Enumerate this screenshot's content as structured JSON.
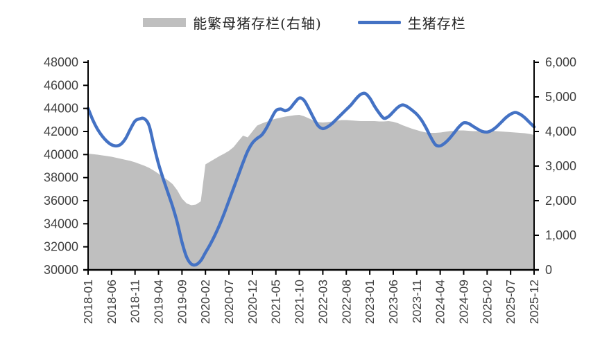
{
  "chart_data": {
    "type": "combo",
    "title": "",
    "x_months_count": 96,
    "x_tick_labels": [
      "2018-01",
      "2018-06",
      "2018-11",
      "2019-04",
      "2019-09",
      "2020-02",
      "2020-07",
      "2020-12",
      "2021-05",
      "2021-10",
      "2022-03",
      "2022-08",
      "2023-01",
      "2023-06",
      "2023-11",
      "2024-04",
      "2024-09",
      "2025-02",
      "2025-07",
      "2025-12"
    ],
    "left_axis": {
      "min": 30000,
      "max": 48000,
      "step": 2000,
      "labels": [
        "48000",
        "46000",
        "44000",
        "42000",
        "40000",
        "38000",
        "36000",
        "34000",
        "32000",
        "30000"
      ]
    },
    "right_axis": {
      "min": 0,
      "max": 6000,
      "step": 1000,
      "labels": [
        "6,000",
        "5,000",
        "4,000",
        "3,000",
        "2,000",
        "1,000",
        "0"
      ]
    },
    "grid": false,
    "legend_position": "top",
    "colors": {
      "area": "#BFBFBF",
      "line": "#4472C4",
      "axis": "#000000",
      "tick_text": "#404040"
    },
    "series": [
      {
        "name": "能繁母猪存栏(右轴)",
        "type": "area",
        "axis": "right",
        "color": "#BFBFBF",
        "values": [
          3360,
          3345,
          3330,
          3310,
          3290,
          3270,
          3240,
          3210,
          3180,
          3150,
          3110,
          3060,
          3010,
          2950,
          2870,
          2780,
          2680,
          2590,
          2480,
          2300,
          2060,
          1920,
          1870,
          1890,
          1980,
          3050,
          3130,
          3210,
          3290,
          3360,
          3440,
          3550,
          3720,
          3880,
          3830,
          4000,
          4170,
          4230,
          4280,
          4330,
          4370,
          4400,
          4430,
          4450,
          4470,
          4480,
          4440,
          4380,
          4320,
          4270,
          4260,
          4270,
          4290,
          4310,
          4330,
          4330,
          4320,
          4310,
          4300,
          4300,
          4300,
          4300,
          4290,
          4290,
          4300,
          4280,
          4240,
          4180,
          4130,
          4080,
          4040,
          4000,
          3970,
          3960,
          3960,
          3970,
          3990,
          4010,
          4020,
          4030,
          4030,
          4020,
          4010,
          4010,
          4010,
          4020,
          4020,
          4010,
          4000,
          3990,
          3980,
          3970,
          3960,
          3950,
          3930,
          3900
        ]
      },
      {
        "name": "生猪存栏",
        "type": "line",
        "axis": "left",
        "color": "#4472C4",
        "values": [
          44000,
          43000,
          42200,
          41600,
          41150,
          40850,
          40750,
          40900,
          41400,
          42200,
          42900,
          43100,
          43100,
          42500,
          40800,
          39200,
          37900,
          36700,
          35500,
          34100,
          32400,
          31100,
          30500,
          30450,
          30800,
          31500,
          32200,
          33000,
          33900,
          34900,
          36000,
          37100,
          38200,
          39300,
          40300,
          41000,
          41400,
          41700,
          42300,
          43100,
          43800,
          43950,
          43800,
          44000,
          44500,
          44900,
          44700,
          44000,
          43200,
          42500,
          42250,
          42400,
          42700,
          43100,
          43500,
          43900,
          44300,
          44800,
          45200,
          45300,
          44900,
          44200,
          43600,
          43150,
          43300,
          43700,
          44100,
          44300,
          44150,
          43850,
          43500,
          43000,
          42300,
          41500,
          40850,
          40750,
          41000,
          41400,
          41900,
          42400,
          42750,
          42700,
          42450,
          42200,
          42000,
          41950,
          42100,
          42400,
          42800,
          43200,
          43500,
          43650,
          43500,
          43200,
          42800,
          42400
        ]
      }
    ]
  }
}
